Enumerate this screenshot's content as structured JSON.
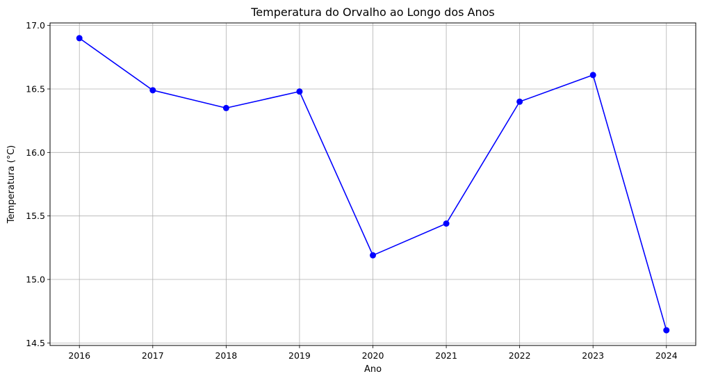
{
  "chart_data": {
    "type": "line",
    "title": "Temperatura do Orvalho ao Longo dos Anos",
    "xlabel": "Ano",
    "ylabel": "Temperatura (°C)",
    "x": [
      2016,
      2017,
      2018,
      2019,
      2020,
      2021,
      2022,
      2023,
      2024
    ],
    "x_tick_labels": [
      "2016",
      "2017",
      "2018",
      "2019",
      "2020",
      "2021",
      "2022",
      "2023",
      "2024"
    ],
    "series": [
      {
        "values": [
          16.9,
          16.49,
          16.35,
          16.48,
          15.19,
          15.44,
          16.4,
          16.61,
          14.6
        ],
        "color": "#0000ff",
        "marker": "circle"
      }
    ],
    "xlim": [
      2015.6,
      2024.4
    ],
    "ylim": [
      14.48,
      17.02
    ],
    "y_ticks": [
      14.5,
      15.0,
      15.5,
      16.0,
      16.5,
      17.0
    ],
    "y_tick_labels": [
      "14.5",
      "15.0",
      "15.5",
      "16.0",
      "16.5",
      "17.0"
    ],
    "grid": true,
    "grid_color": "#b0b0b0",
    "legend": "none"
  }
}
